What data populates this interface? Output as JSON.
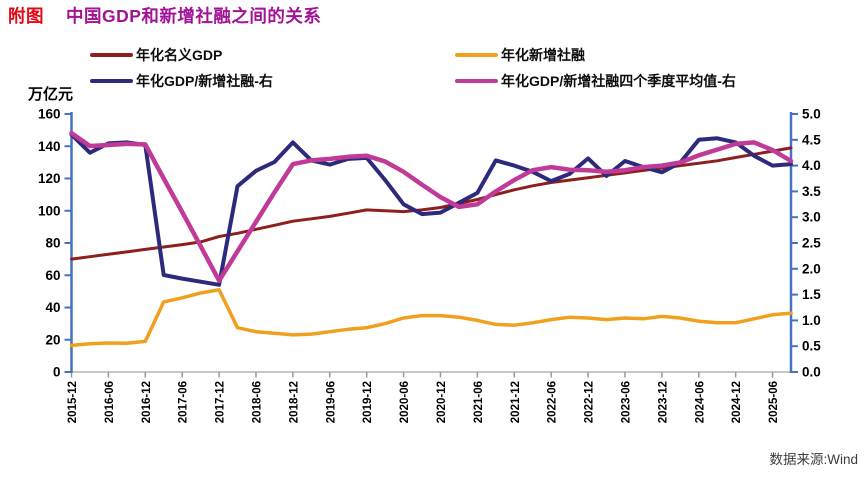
{
  "title": {
    "prefix": "附图",
    "text": "中国GDP和新增社融之间的关系"
  },
  "y_axis_left": {
    "title": "万亿元",
    "ticks": [
      "0",
      "20",
      "40",
      "60",
      "80",
      "100",
      "120",
      "140",
      "160"
    ]
  },
  "y_axis_right": {
    "ticks": [
      "0.0",
      "0.5",
      "1.0",
      "1.5",
      "2.0",
      "2.5",
      "3.0",
      "3.5",
      "4.0",
      "4.5",
      "5.0"
    ]
  },
  "source": {
    "text": "数据来源:Wind"
  },
  "legend": {
    "items": [
      {
        "series": 0
      },
      {
        "series": 1
      },
      {
        "series": 2
      },
      {
        "series": 3
      }
    ]
  },
  "chart_data": {
    "type": "line",
    "title": "附图 中国GDP和新增社融之间的关系",
    "x_start": "2015-12",
    "x_frequency": "quarterly",
    "x_tick_labels": [
      "2015-12",
      "2016-06",
      "2016-12",
      "2017-06",
      "2017-12",
      "2018-06",
      "2018-12",
      "2019-06",
      "2019-12",
      "2020-06",
      "2020-12",
      "2021-06",
      "2021-12",
      "2022-06",
      "2022-12",
      "2023-06",
      "2023-12",
      "2024-06",
      "2024-12",
      "2025-06"
    ],
    "ylim_left": [
      0,
      160
    ],
    "ylim_right": [
      0.0,
      5.0
    ],
    "grid": false,
    "legend_position": "top",
    "series": [
      {
        "key": "gdp",
        "name": "年化名义GDP",
        "axis": "left",
        "color": "#8e1f1f",
        "values": [
          70,
          71.5,
          73,
          74.5,
          76,
          77.5,
          79,
          80.7,
          84,
          86,
          88.5,
          91,
          93.5,
          95,
          96.5,
          98.5,
          100.5,
          100,
          99.5,
          100.5,
          102,
          104.5,
          107,
          110,
          113,
          115.5,
          117.5,
          119,
          120.5,
          122,
          123.5,
          125,
          126.5,
          128,
          129.5,
          131,
          133,
          135,
          137,
          139
        ]
      },
      {
        "key": "new-tsf",
        "name": "年化新增社融",
        "axis": "left",
        "color": "#f0a01e",
        "values": [
          16.5,
          17.5,
          18,
          17.8,
          19,
          43.5,
          46,
          49,
          51,
          27.5,
          25,
          24,
          23,
          23.5,
          25,
          26.5,
          27.5,
          30,
          33.5,
          35,
          35,
          34,
          32,
          29.5,
          29,
          30.5,
          32.5,
          34,
          33.5,
          32.5,
          33.5,
          33,
          34.5,
          33.5,
          31.5,
          30.5,
          30.5,
          33,
          35.5,
          36.5
        ]
      },
      {
        "key": "gdp-tsf-ratio",
        "name": "年化GDP/新增社融-右",
        "axis": "right",
        "color": "#2d2a7c",
        "values": [
          4.6,
          4.25,
          4.43,
          4.45,
          4.4,
          1.88,
          1.81,
          1.75,
          1.69,
          3.6,
          3.9,
          4.07,
          4.45,
          4.1,
          4.02,
          4.13,
          4.15,
          3.72,
          3.25,
          3.06,
          3.09,
          3.28,
          3.47,
          4.1,
          4.0,
          3.88,
          3.7,
          3.84,
          4.14,
          3.8,
          4.09,
          3.97,
          3.87,
          4.06,
          4.5,
          4.53,
          4.45,
          4.19,
          4.0,
          4.03
        ]
      },
      {
        "key": "gdp-tsf-ratio-4q-avg",
        "name": "年化GDP/新增社融四个季度平均值-右",
        "axis": "right",
        "color": "#c03b98",
        "values": [
          4.63,
          4.38,
          4.4,
          4.42,
          4.41,
          3.75,
          3.1,
          2.44,
          1.77,
          2.34,
          2.91,
          3.48,
          4.03,
          4.1,
          4.13,
          4.17,
          4.19,
          4.08,
          3.88,
          3.63,
          3.39,
          3.2,
          3.25,
          3.5,
          3.72,
          3.91,
          3.97,
          3.92,
          3.91,
          3.88,
          3.91,
          3.97,
          4.0,
          4.06,
          4.2,
          4.31,
          4.42,
          4.45,
          4.3,
          4.09
        ]
      }
    ]
  }
}
